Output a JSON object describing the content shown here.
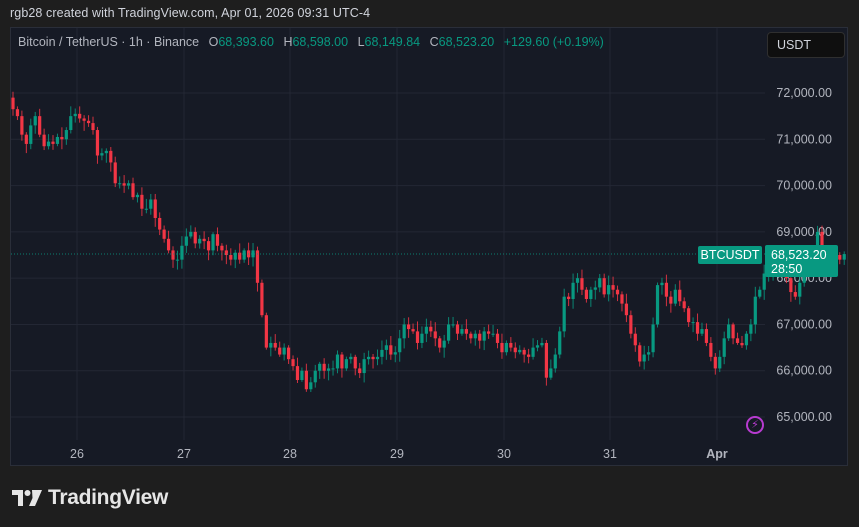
{
  "header": {
    "credit": "rgb28 created with TradingView.com, Apr 01, 2026 09:31 UTC-4"
  },
  "legend": {
    "symbol": "Bitcoin / TetherUS · 1h · Binance",
    "open_label": "O",
    "open": "68,393.60",
    "high_label": "H",
    "high": "68,598.00",
    "low_label": "L",
    "low": "68,149.84",
    "close_label": "C",
    "close": "68,523.20",
    "change": "+129.60 (+0.19%)"
  },
  "toolbar": {
    "unit_button": "USDT"
  },
  "price_tag": {
    "symbol": "BTCUSDT",
    "price": "68,523.20",
    "countdown": "28:50"
  },
  "footer": {
    "brand": "TradingView"
  },
  "colors": {
    "up": "#089981",
    "down": "#f23645",
    "background": "#161a25",
    "grid": "#232734",
    "text": "#b2b5be",
    "alert_icon": "#b73bd0"
  },
  "icons": {
    "alert": "lightning-alert-icon",
    "logo": "tradingview-logo-icon"
  },
  "chart_data": {
    "type": "candlestick",
    "title": "Bitcoin / TetherUS · 1h · Binance",
    "xlabel": "",
    "ylabel": "USDT",
    "ylim": [
      64400,
      73500
    ],
    "grid": true,
    "legend_position": "top-left",
    "x_ticks": [
      "26",
      "27",
      "28",
      "29",
      "30",
      "31",
      "Apr"
    ],
    "y_ticks": [
      "72,000.00",
      "71,000.00",
      "70,000.00",
      "69,000.00",
      "68,000.00",
      "67,000.00",
      "66,000.00",
      "65,000.00"
    ],
    "last_price": 68523.2,
    "interval": "1h",
    "closes": [
      71650,
      71500,
      71100,
      70900,
      71300,
      71500,
      71100,
      70850,
      70950,
      70900,
      71050,
      71000,
      71200,
      71500,
      71550,
      71450,
      71400,
      71350,
      71200,
      70650,
      70700,
      70750,
      70500,
      70050,
      70050,
      70000,
      70050,
      69750,
      69800,
      69500,
      69500,
      69700,
      69300,
      69050,
      68850,
      68600,
      68400,
      68400,
      68700,
      68900,
      69000,
      68750,
      68850,
      68800,
      68600,
      68950,
      68700,
      68600,
      68500,
      68400,
      68550,
      68400,
      68600,
      68450,
      68600,
      67900,
      67200,
      66500,
      66600,
      66500,
      66350,
      66500,
      66250,
      66100,
      65800,
      66000,
      65600,
      65750,
      66000,
      66150,
      66000,
      66050,
      66050,
      66350,
      66050,
      66250,
      66300,
      66050,
      65950,
      66250,
      66300,
      66250,
      66300,
      66450,
      66550,
      66350,
      66400,
      66700,
      67000,
      66900,
      66850,
      66600,
      66800,
      66950,
      66850,
      66700,
      66500,
      66650,
      67000,
      67000,
      66800,
      66900,
      66800,
      66700,
      66800,
      66650,
      66850,
      66800,
      66800,
      66600,
      66400,
      66600,
      66500,
      66400,
      66450,
      66350,
      66300,
      66500,
      66550,
      66600,
      65850,
      66050,
      66350,
      66850,
      67600,
      67550,
      67900,
      68000,
      67750,
      67550,
      67750,
      67800,
      68000,
      67650,
      67850,
      67750,
      67650,
      67450,
      67200,
      66800,
      66550,
      66200,
      66350,
      66400,
      67000,
      67850,
      67900,
      67600,
      67450,
      67750,
      67500,
      67350,
      67050,
      67050,
      66800,
      66900,
      66600,
      66300,
      66050,
      66300,
      66700,
      67000,
      66700,
      66600,
      66550,
      66800,
      67000,
      67600,
      67750,
      68100,
      68150,
      68300,
      68350,
      68450,
      68000,
      67700,
      67600,
      67900,
      68350,
      68500,
      68450,
      69000,
      68550,
      68500,
      68600,
      68500,
      68400,
      68520
    ]
  }
}
